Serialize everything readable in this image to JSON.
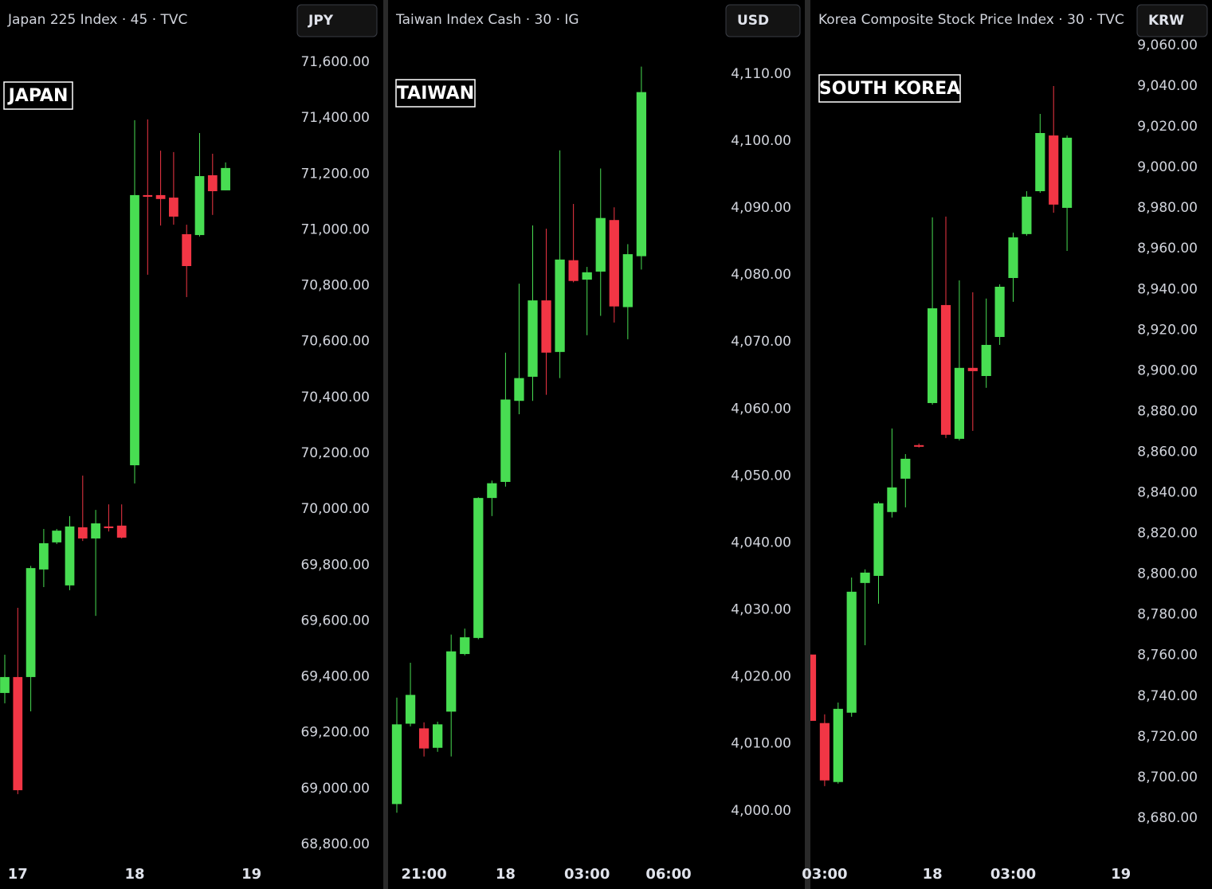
{
  "chart_data": [
    {
      "type": "candlestick",
      "title": "Japan 225 Index · 45 · TVC",
      "currency": "JPY",
      "annotation": "JAPAN",
      "categories": [
        null,
        "17",
        null,
        null,
        null,
        null,
        null,
        null,
        null,
        null,
        "18",
        null,
        null,
        null,
        null,
        null,
        null,
        null,
        null,
        "19"
      ],
      "open": [
        69342,
        69399,
        69399,
        69784,
        69881,
        69727,
        69935,
        69895,
        69938,
        69941,
        70157,
        71124,
        71124,
        71115,
        70984,
        70981,
        71195,
        71141,
        null,
        null
      ],
      "high": [
        69479,
        69647,
        69797,
        69929,
        69929,
        69975,
        70120,
        69997,
        70017,
        70017,
        71392,
        71395,
        71283,
        71278,
        71018,
        71346,
        71272,
        71241,
        null,
        null
      ],
      "low": [
        69305,
        68980,
        69276,
        69721,
        69875,
        69710,
        69886,
        69618,
        69920,
        69895,
        70092,
        70839,
        71015,
        71018,
        70759,
        70976,
        71053,
        71141,
        null,
        null
      ],
      "close": [
        69399,
        68994,
        69789,
        69878,
        69923,
        69938,
        69895,
        69949,
        69932,
        69898,
        71124,
        71118,
        71110,
        71047,
        70870,
        71192,
        71138,
        71221,
        null,
        null
      ],
      "up_color": "#48dd52",
      "down_color": "#f23645",
      "ylim": [
        68743,
        71694
      ],
      "yticks": [
        {
          "value": 71600,
          "label": "71,600.00"
        },
        {
          "value": 71400,
          "label": "71,400.00"
        },
        {
          "value": 71200,
          "label": "71,200.00"
        },
        {
          "value": 71000,
          "label": "71,000.00"
        },
        {
          "value": 70800,
          "label": "70,800.00"
        },
        {
          "value": 70600,
          "label": "70,600.00"
        },
        {
          "value": 70400,
          "label": "70,400.00"
        },
        {
          "value": 70200,
          "label": "70,200.00"
        },
        {
          "value": 70000,
          "label": "70,000.00"
        },
        {
          "value": 69800,
          "label": "69,800.00"
        },
        {
          "value": 69600,
          "label": "69,600.00"
        },
        {
          "value": 69400,
          "label": "69,400.00"
        },
        {
          "value": 69200,
          "label": "69,200.00"
        },
        {
          "value": 69000,
          "label": "69,000.00"
        },
        {
          "value": 68800,
          "label": "68,800.00"
        }
      ]
    },
    {
      "type": "candlestick",
      "title": "Taiwan Index Cash · 30 · IG",
      "currency": "USD",
      "annotation": "TAIWAN",
      "categories": [
        null,
        null,
        "21:00",
        null,
        null,
        null,
        null,
        null,
        "18",
        null,
        null,
        null,
        null,
        null,
        "03:00",
        null,
        null,
        null,
        null,
        null,
        "06:00"
      ],
      "open": [
        4001.0,
        4013.0,
        4012.3,
        4009.4,
        4014.8,
        4023.4,
        4025.8,
        4046.7,
        4049.1,
        4061.2,
        4064.8,
        4076.2,
        4068.5,
        4082.2,
        4079.3,
        4080.5,
        4088.2,
        4075.2,
        4082.8,
        null,
        null
      ],
      "high": [
        4016.9,
        4022.1,
        4013.2,
        4013.3,
        4026.3,
        4027.2,
        4046.8,
        4049.3,
        4068.4,
        4078.7,
        4087.4,
        4086.9,
        4098.6,
        4090.6,
        4081.2,
        4095.9,
        4090.1,
        4084.6,
        4111.1,
        null,
        null
      ],
      "low": [
        3999.7,
        4012.6,
        4008.1,
        4008.8,
        4008.1,
        4023.2,
        4025.6,
        4044.0,
        4048.4,
        4059.2,
        4061.2,
        4062.1,
        4064.6,
        4078.9,
        4071.0,
        4073.9,
        4072.9,
        4070.4,
        4080.8,
        null,
        null
      ],
      "close": [
        4012.9,
        4017.3,
        4009.3,
        4012.9,
        4023.8,
        4025.9,
        4046.7,
        4048.9,
        4061.4,
        4064.6,
        4076.2,
        4068.4,
        4082.3,
        4079.1,
        4080.4,
        4088.5,
        4075.3,
        4083.1,
        4107.3,
        null,
        null
      ],
      "up_color": "#48dd52",
      "down_color": "#f23645",
      "ylim": [
        3992.6,
        4115.7
      ],
      "yticks": [
        {
          "value": 4110,
          "label": "4,110.00"
        },
        {
          "value": 4100,
          "label": "4,100.00"
        },
        {
          "value": 4090,
          "label": "4,090.00"
        },
        {
          "value": 4080,
          "label": "4,080.00"
        },
        {
          "value": 4070,
          "label": "4,070.00"
        },
        {
          "value": 4060,
          "label": "4,060.00"
        },
        {
          "value": 4050,
          "label": "4,050.00"
        },
        {
          "value": 4040,
          "label": "4,040.00"
        },
        {
          "value": 4030,
          "label": "4,030.00"
        },
        {
          "value": 4020,
          "label": "4,020.00"
        },
        {
          "value": 4010,
          "label": "4,010.00"
        },
        {
          "value": 4000,
          "label": "4,000.00"
        }
      ]
    },
    {
      "type": "candlestick",
      "title": "Korea Composite Stock Price Index · 30 · TVC",
      "currency": "KRW",
      "annotation": "SOUTH KOREA",
      "categories": [
        null,
        "03:00",
        null,
        null,
        null,
        null,
        null,
        null,
        null,
        "18",
        null,
        null,
        null,
        null,
        null,
        "03:00",
        null,
        null,
        null,
        null,
        null,
        null,
        null,
        "19"
      ],
      "open": [
        8760.4,
        8726.7,
        8697.7,
        8731.8,
        8795.6,
        8799.1,
        8830.5,
        8846.9,
        8863.4,
        8884.1,
        8932.3,
        8866.5,
        8901.4,
        8897.4,
        8916.6,
        8945.6,
        8967.2,
        8988.3,
        9015.7,
        8980.1,
        null,
        null,
        null,
        null
      ],
      "high": [
        8760.4,
        8731.0,
        8736.8,
        8798.3,
        8802.3,
        8835.6,
        8871.6,
        8859.0,
        8864.2,
        8975.4,
        8975.8,
        8944.4,
        8938.6,
        8935.5,
        8942.5,
        8967.9,
        8988.3,
        9026.3,
        9040.0,
        9015.7,
        null,
        null,
        null,
        null
      ],
      "low": [
        8727.8,
        8695.7,
        8696.9,
        8729.8,
        8765.0,
        8785.4,
        8827.8,
        8832.8,
        8862.2,
        8883.3,
        8866.9,
        8865.7,
        8870.4,
        8891.6,
        8912.7,
        8933.9,
        8966.4,
        8987.5,
        8977.7,
        8958.9,
        null,
        null,
        null,
        null
      ],
      "close": [
        8727.8,
        8698.5,
        8733.7,
        8791.3,
        8800.7,
        8834.8,
        8842.6,
        8856.7,
        8862.6,
        8930.7,
        8868.5,
        8901.4,
        8899.8,
        8912.7,
        8941.3,
        8965.6,
        8985.6,
        9016.9,
        8981.7,
        9014.6,
        null,
        null,
        null,
        null
      ],
      "up_color": "#48dd52",
      "down_color": "#f23645",
      "ylim": [
        8659.2,
        9064.7
      ],
      "yticks": [
        {
          "value": 9060,
          "label": "9,060.00"
        },
        {
          "value": 9040,
          "label": "9,040.00"
        },
        {
          "value": 9020,
          "label": "9,020.00"
        },
        {
          "value": 9000,
          "label": "9,000.00"
        },
        {
          "value": 8980,
          "label": "8,980.00"
        },
        {
          "value": 8960,
          "label": "8,960.00"
        },
        {
          "value": 8940,
          "label": "8,940.00"
        },
        {
          "value": 8920,
          "label": "8,920.00"
        },
        {
          "value": 8900,
          "label": "8,900.00"
        },
        {
          "value": 8880,
          "label": "8,880.00"
        },
        {
          "value": 8860,
          "label": "8,860.00"
        },
        {
          "value": 8840,
          "label": "8,840.00"
        },
        {
          "value": 8820,
          "label": "8,820.00"
        },
        {
          "value": 8800,
          "label": "8,800.00"
        },
        {
          "value": 8780,
          "label": "8,780.00"
        },
        {
          "value": 8760,
          "label": "8,760.00"
        },
        {
          "value": 8740,
          "label": "8,740.00"
        },
        {
          "value": 8720,
          "label": "8,720.00"
        },
        {
          "value": 8700,
          "label": "8,700.00"
        },
        {
          "value": 8680,
          "label": "8,680.00"
        }
      ]
    }
  ]
}
